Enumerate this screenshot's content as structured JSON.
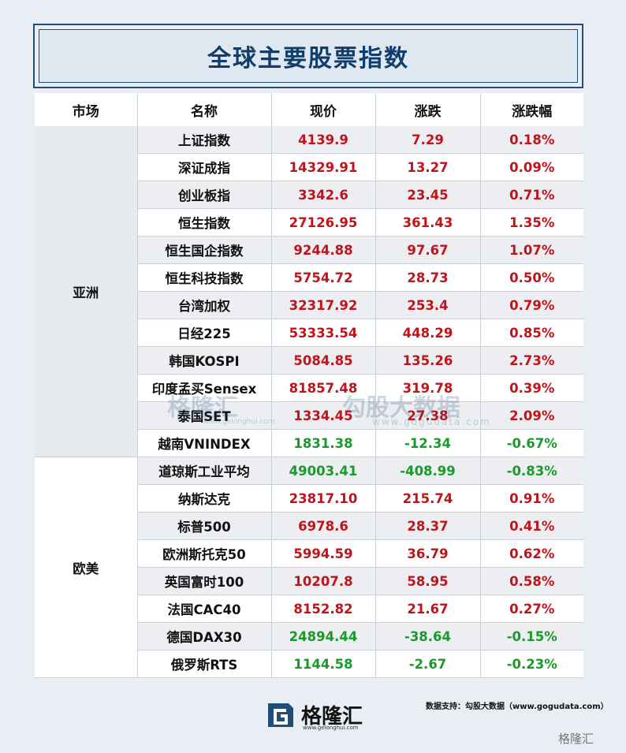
{
  "title": "全球主要股票指数",
  "headers": [
    "市场",
    "名称",
    "现价",
    "涨跌",
    "涨跌幅"
  ],
  "regions": {
    "asia": "亚洲",
    "west": "欧美"
  },
  "rows": [
    {
      "name": "上证指数",
      "price": "4139.9",
      "change": "7.29",
      "pct": "0.18%",
      "dir": "up"
    },
    {
      "name": "深证成指",
      "price": "14329.91",
      "change": "13.27",
      "pct": "0.09%",
      "dir": "up"
    },
    {
      "name": "创业板指",
      "price": "3342.6",
      "change": "23.45",
      "pct": "0.71%",
      "dir": "up"
    },
    {
      "name": "恒生指数",
      "price": "27126.95",
      "change": "361.43",
      "pct": "1.35%",
      "dir": "up"
    },
    {
      "name": "恒生国企指数",
      "price": "9244.88",
      "change": "97.67",
      "pct": "1.07%",
      "dir": "up"
    },
    {
      "name": "恒生科技指数",
      "price": "5754.72",
      "change": "28.73",
      "pct": "0.50%",
      "dir": "up"
    },
    {
      "name": "台湾加权",
      "price": "32317.92",
      "change": "253.4",
      "pct": "0.79%",
      "dir": "up"
    },
    {
      "name": "日经225",
      "price": "53333.54",
      "change": "448.29",
      "pct": "0.85%",
      "dir": "up"
    },
    {
      "name": "韩国KOSPI",
      "price": "5084.85",
      "change": "135.26",
      "pct": "2.73%",
      "dir": "up"
    },
    {
      "name": "印度孟买Sensex",
      "price": "81857.48",
      "change": "319.78",
      "pct": "0.39%",
      "dir": "up"
    },
    {
      "name": "泰国SET",
      "price": "1334.45",
      "change": "27.38",
      "pct": "2.09%",
      "dir": "up"
    },
    {
      "name": "越南VNINDEX",
      "price": "1831.38",
      "change": "-12.34",
      "pct": "-0.67%",
      "dir": "down"
    },
    {
      "name": "道琼斯工业平均",
      "price": "49003.41",
      "change": "-408.99",
      "pct": "-0.83%",
      "dir": "down"
    },
    {
      "name": "纳斯达克",
      "price": "23817.10",
      "change": "215.74",
      "pct": "0.91%",
      "dir": "up"
    },
    {
      "name": "标普500",
      "price": "6978.6",
      "change": "28.37",
      "pct": "0.41%",
      "dir": "up"
    },
    {
      "name": "欧洲斯托克50",
      "price": "5994.59",
      "change": "36.79",
      "pct": "0.62%",
      "dir": "up"
    },
    {
      "name": "英国富时100",
      "price": "10207.8",
      "change": "58.95",
      "pct": "0.58%",
      "dir": "up"
    },
    {
      "name": "法国CAC40",
      "price": "8152.82",
      "change": "21.67",
      "pct": "0.27%",
      "dir": "up"
    },
    {
      "name": "德国DAX30",
      "price": "24894.44",
      "change": "-38.64",
      "pct": "-0.15%",
      "dir": "down"
    },
    {
      "name": "俄罗斯RTS",
      "price": "1144.58",
      "change": "-2.67",
      "pct": "-0.23%",
      "dir": "down"
    }
  ],
  "colors": {
    "up": "#c0141b",
    "down": "#1a9a2a",
    "title": "#123d6b"
  },
  "watermark": {
    "logo": "格隆汇",
    "url1": "www.gelonghui.com",
    "sub": "勾股大数据",
    "url2": "www.gogudata.com"
  },
  "footer": {
    "logo_text": "格隆汇",
    "logo_url": "www.gelonghui.com",
    "source": "数据支持：勾股大数据（www.gogudata.com）",
    "corner": "格隆汇"
  }
}
